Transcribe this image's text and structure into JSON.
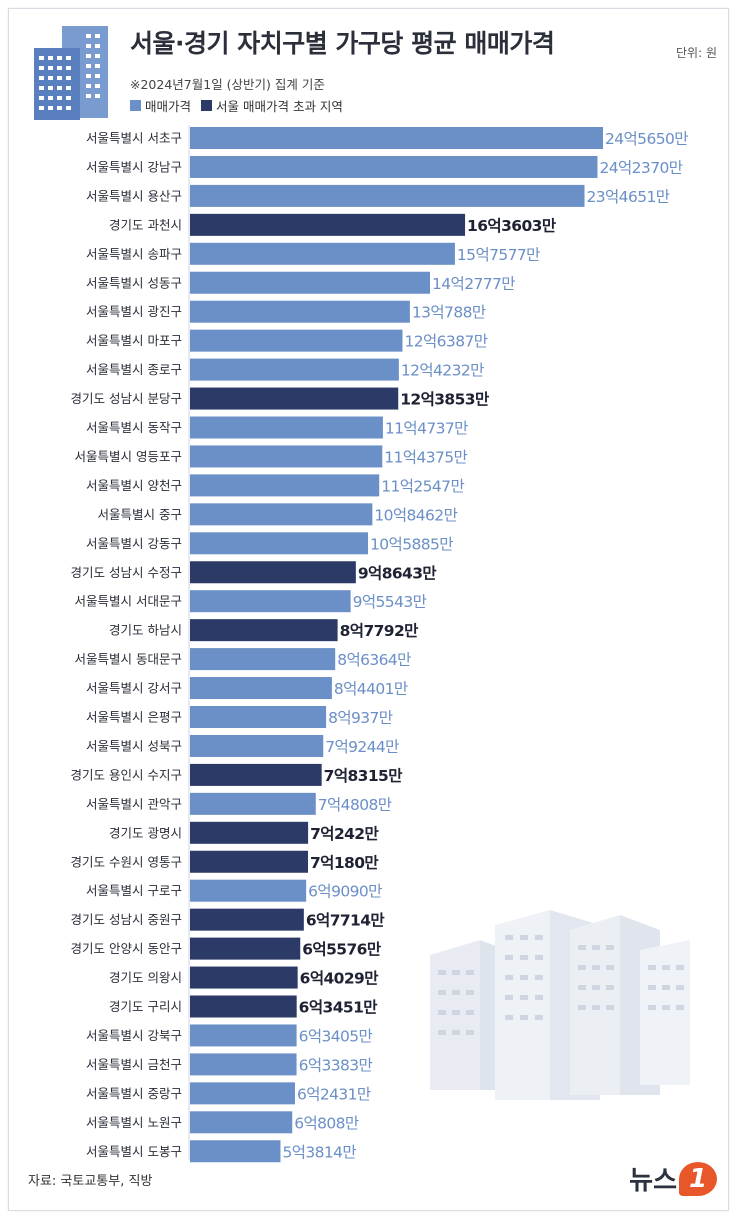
{
  "header": {
    "title": "서울·경기 자치구별 가구당 평균 매매가격",
    "unit": "단위: 원",
    "subtitle": "※2024년7월1일 (상반기) 집계 기준"
  },
  "footer": {
    "source": "자료: 국토교통부, 직방",
    "logo_text": "뉴스",
    "logo_badge": "1"
  },
  "icons": {
    "top_left": "apartment-building-icon",
    "bottom_right": "apartment-complex-illustration"
  },
  "colors": {
    "seoul": "#6b8fc7",
    "gyeonggi": "#2b3a66",
    "seoul_text": "#6b8fc7",
    "gyeonggi_text": "#1e2233"
  },
  "chart_data": {
    "type": "bar",
    "orientation": "horizontal",
    "title": "서울·경기 자치구별 가구당 평균 매매가격",
    "legend": [
      {
        "name": "매매가격",
        "color": "#6b8fc7"
      },
      {
        "name": "서울 매매가격 초과 지역",
        "color": "#2b3a66"
      }
    ],
    "legend_position": "top-left",
    "grid": false,
    "unit": "원",
    "categories": [
      "서울특별시 서초구",
      "서울특별시 강남구",
      "서울특별시 용산구",
      "경기도 과천시",
      "서울특별시 송파구",
      "서울특별시 성동구",
      "서울특별시 광진구",
      "서울특별시 마포구",
      "서울특별시 종로구",
      "경기도 성남시 분당구",
      "서울특별시 동작구",
      "서울특별시 영등포구",
      "서울특별시 양천구",
      "서울특별시 중구",
      "서울특별시 강동구",
      "경기도 성남시 수정구",
      "서울특별시 서대문구",
      "경기도 하남시",
      "서울특별시 동대문구",
      "서울특별시 강서구",
      "서울특별시 은평구",
      "서울특별시 성북구",
      "경기도 용인시 수지구",
      "서울특별시 관악구",
      "경기도 광명시",
      "경기도 수원시 영통구",
      "서울특별시 구로구",
      "경기도 성남시 중원구",
      "경기도 안양시 동안구",
      "경기도 의왕시",
      "경기도 구리시",
      "서울특별시 강북구",
      "서울특별시 금천구",
      "서울특별시 중랑구",
      "서울특별시 노원구",
      "서울특별시 도봉구"
    ],
    "values": [
      2456500000,
      2423700000,
      2346510000,
      1636030000,
      1575770000,
      1427770000,
      1307880000,
      1263870000,
      1242320000,
      1238530000,
      1147370000,
      1143750000,
      1125470000,
      1084620000,
      1058850000,
      986430000,
      955430000,
      877920000,
      863640000,
      844010000,
      809370000,
      792440000,
      783150000,
      748080000,
      702420000,
      701800000,
      690900000,
      677140000,
      655760000,
      640290000,
      634510000,
      634050000,
      633830000,
      624310000,
      608080000,
      538140000
    ],
    "value_labels": [
      "24억5650만",
      "24억2370만",
      "23억4651만",
      "16억3603만",
      "15억7577만",
      "14억2777만",
      "13억788만",
      "12억6387만",
      "12억4232만",
      "12억3853만",
      "11억4737만",
      "11억4375만",
      "11억2547만",
      "10억8462만",
      "10억5885만",
      "9억8643만",
      "9억5543만",
      "8억7792만",
      "8억6364만",
      "8억4401만",
      "8억937만",
      "7억9244만",
      "7억8315만",
      "7억4808만",
      "7억242만",
      "7억180만",
      "6억9090만",
      "6억7714만",
      "6억5576만",
      "6억4029만",
      "6억3451만",
      "6억3405만",
      "6억3383만",
      "6억2431만",
      "6억808만",
      "5억3814만"
    ],
    "highlight": [
      false,
      false,
      false,
      true,
      false,
      false,
      false,
      false,
      false,
      true,
      false,
      false,
      false,
      false,
      false,
      true,
      false,
      true,
      false,
      false,
      false,
      false,
      true,
      false,
      true,
      true,
      false,
      true,
      true,
      true,
      true,
      false,
      false,
      false,
      false,
      false
    ]
  }
}
